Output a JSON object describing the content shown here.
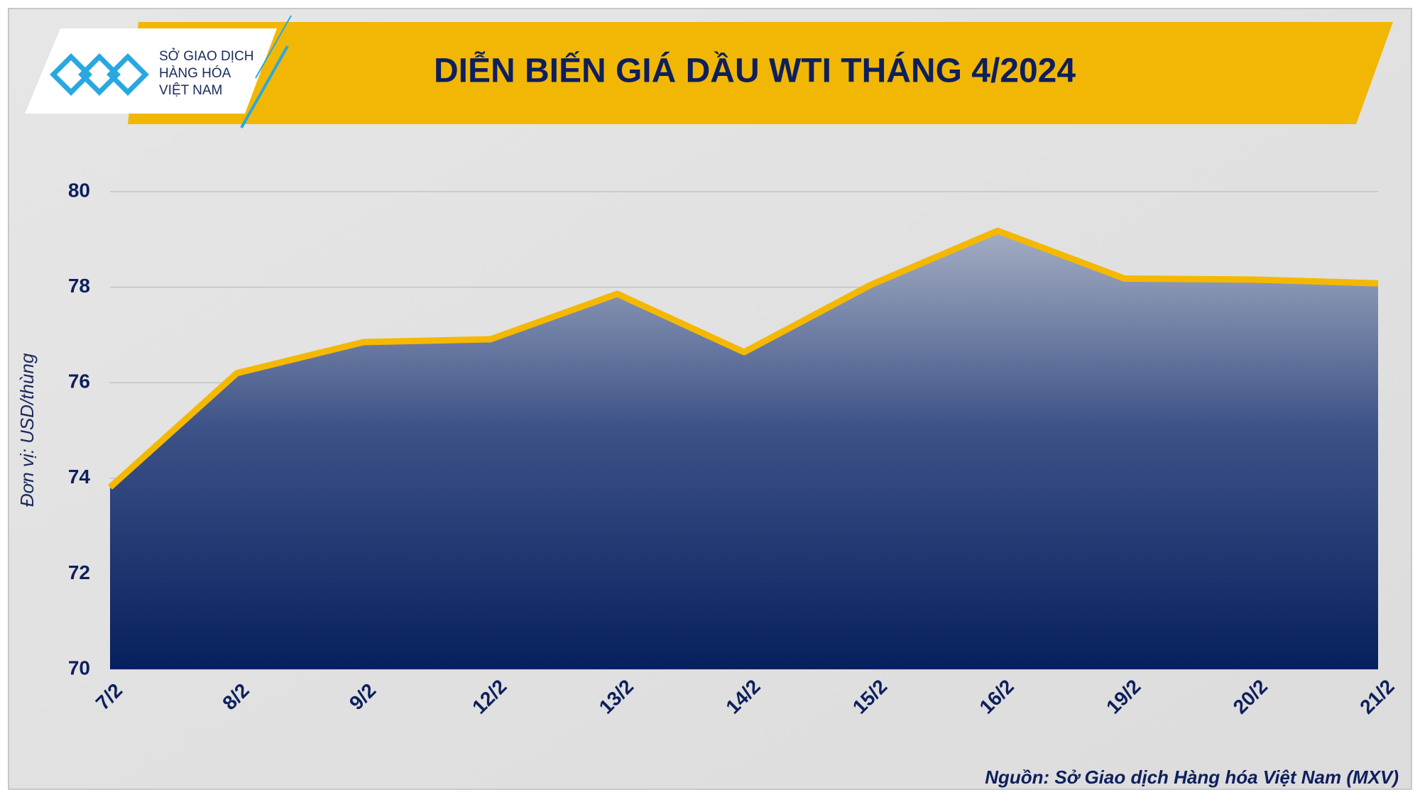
{
  "logo": {
    "lines": [
      "SỞ GIAO DỊCH",
      "HÀNG HÓA",
      "VIỆT NAM"
    ]
  },
  "chart_data": {
    "type": "area",
    "title": "DIỄN BIẾN GIÁ DẦU WTI THÁNG 4/2024",
    "y_label": "Đơn vị: USD/thùng",
    "source": "Nguồn: Sở Giao dịch Hàng hóa Việt Nam (MXV)",
    "categories": [
      "7/2",
      "8/2",
      "9/2",
      "12/2",
      "13/2",
      "14/2",
      "15/2",
      "16/2",
      "19/2",
      "20/2",
      "21/2"
    ],
    "values": [
      73.81,
      76.2,
      76.85,
      76.91,
      77.86,
      76.64,
      78.05,
      79.18,
      78.18,
      78.16,
      78.08
    ],
    "color": "#f5b800",
    "ylim": [
      70,
      80
    ],
    "yticks": [
      70,
      72,
      74,
      76,
      78,
      80
    ],
    "grid": true
  }
}
